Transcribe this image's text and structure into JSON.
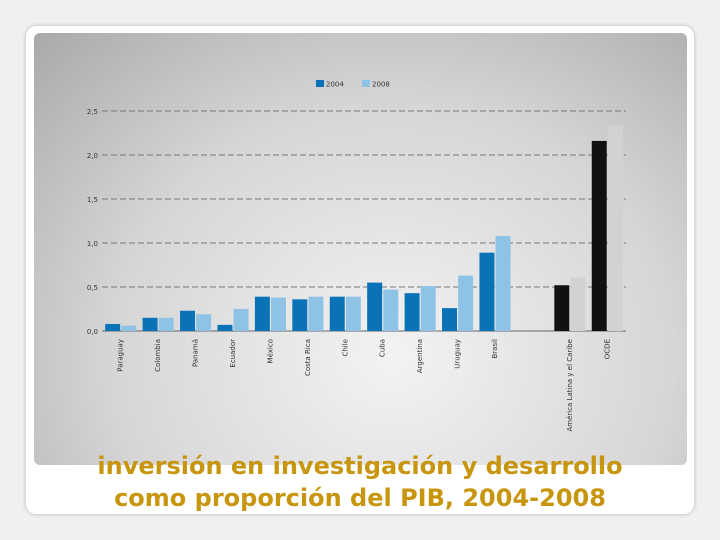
{
  "caption": {
    "line1": "inversión en investigación y desarrollo",
    "line2": "como proporción del PIB, 2004-2008"
  },
  "chart_data": {
    "type": "bar",
    "categories": [
      "Paraguay",
      "Colombia",
      "Panamá",
      "Ecuador",
      "México",
      "Costa Rica",
      "Chile",
      "Cuba",
      "Argentina",
      "Uruguay",
      "Brasil",
      "",
      "América Latina y el Caribe",
      "OCDE"
    ],
    "series": [
      {
        "name": "2004",
        "values": [
          0.08,
          0.15,
          0.23,
          0.07,
          0.39,
          0.36,
          0.39,
          0.55,
          0.43,
          0.26,
          0.89,
          null,
          0.52,
          2.16
        ]
      },
      {
        "name": "2008",
        "values": [
          0.06,
          0.15,
          0.19,
          0.25,
          0.38,
          0.39,
          0.39,
          0.47,
          0.51,
          0.63,
          1.08,
          null,
          0.61,
          2.33
        ]
      }
    ],
    "ylim": [
      0,
      2.5
    ],
    "yticks": [
      "0,0",
      "0,5",
      "1,0",
      "1,5",
      "2,0",
      "2,5"
    ],
    "grid": true,
    "legend": "top-center",
    "colors": {
      "series2004": "#0a72b6",
      "series2008": "#8ec3e6",
      "aggregate2004": "#111111",
      "aggregate2008": "#d2d2d2"
    }
  }
}
